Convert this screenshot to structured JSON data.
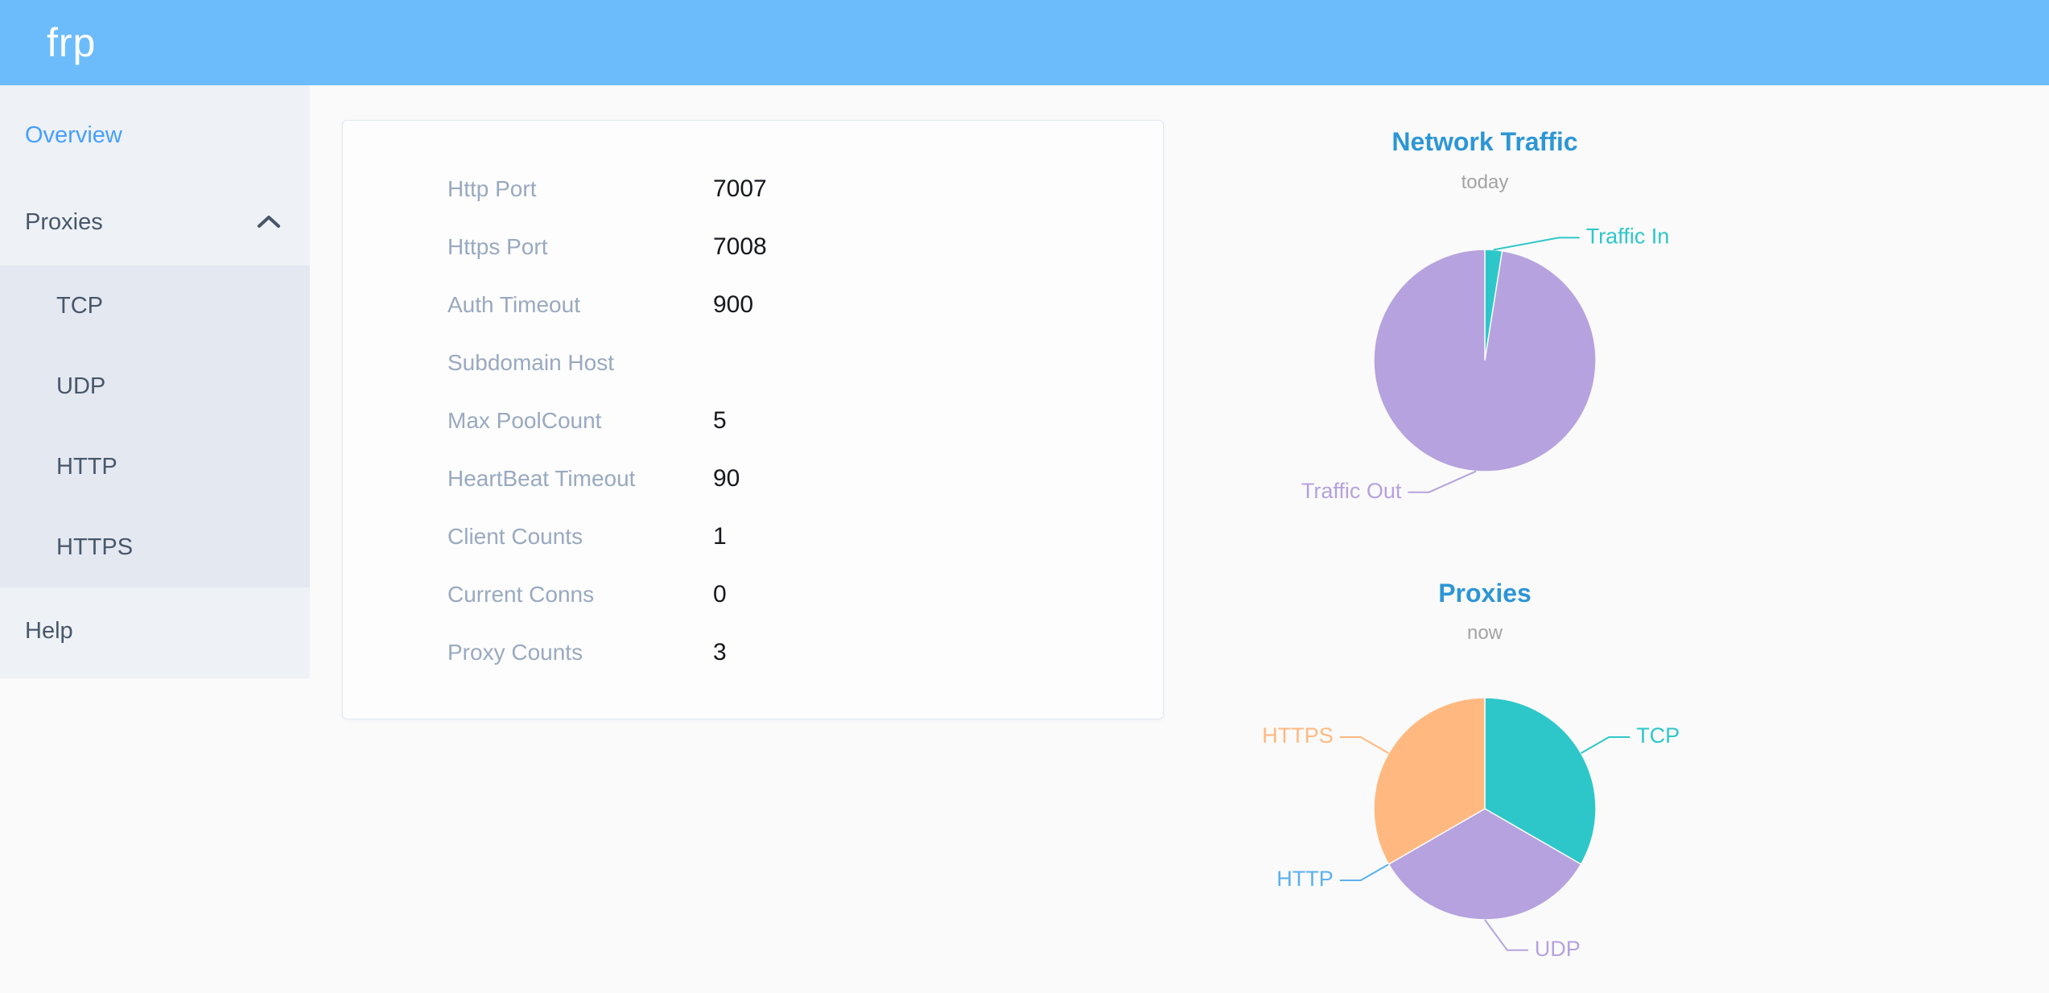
{
  "header": {
    "logo": "frp",
    "bg_color": "#6cbcfb"
  },
  "sidebar": {
    "active_color": "#46a0fc",
    "items": [
      {
        "label": "Overview",
        "active": true
      },
      {
        "label": "Proxies",
        "expanded": true,
        "children": [
          "TCP",
          "UDP",
          "HTTP",
          "HTTPS"
        ]
      },
      {
        "label": "Help"
      }
    ]
  },
  "overview": {
    "rows": [
      {
        "label": "Http Port",
        "value": "7007"
      },
      {
        "label": "Https Port",
        "value": "7008"
      },
      {
        "label": "Auth Timeout",
        "value": "900"
      },
      {
        "label": "Subdomain Host",
        "value": ""
      },
      {
        "label": "Max PoolCount",
        "value": "5"
      },
      {
        "label": "HeartBeat Timeout",
        "value": "90"
      },
      {
        "label": "Client Counts",
        "value": "1"
      },
      {
        "label": "Current Conns",
        "value": "0"
      },
      {
        "label": "Proxy Counts",
        "value": "3"
      }
    ]
  },
  "chart_data": [
    {
      "type": "pie",
      "title": "Network Traffic",
      "subtitle": "today",
      "title_color": "#2d96d5",
      "subtitle_color": "#a3a3a3",
      "legend_position": "callout-labels",
      "series": [
        {
          "name": "Traffic In",
          "value": 2.5,
          "color": "#2ec7c9",
          "label_angle": 31
        },
        {
          "name": "Traffic Out",
          "value": 97.5,
          "color": "#b6a2de",
          "label_angle": 203
        }
      ],
      "note": "values are percent share estimated from slice angles"
    },
    {
      "type": "pie",
      "title": "Proxies",
      "subtitle": "now",
      "title_color": "#2d96d5",
      "subtitle_color": "#a3a3a3",
      "legend_position": "callout-labels",
      "series": [
        {
          "name": "TCP",
          "value": 1,
          "color": "#2ec7c9",
          "label_angle": 60
        },
        {
          "name": "UDP",
          "value": 1,
          "color": "#b6a2de",
          "label_angle": 171
        },
        {
          "name": "HTTP",
          "value": 0,
          "color": "#5ab1ef",
          "label_angle": 240
        },
        {
          "name": "HTTPS",
          "value": 1,
          "color": "#ffb980",
          "label_angle": 300
        }
      ]
    }
  ]
}
